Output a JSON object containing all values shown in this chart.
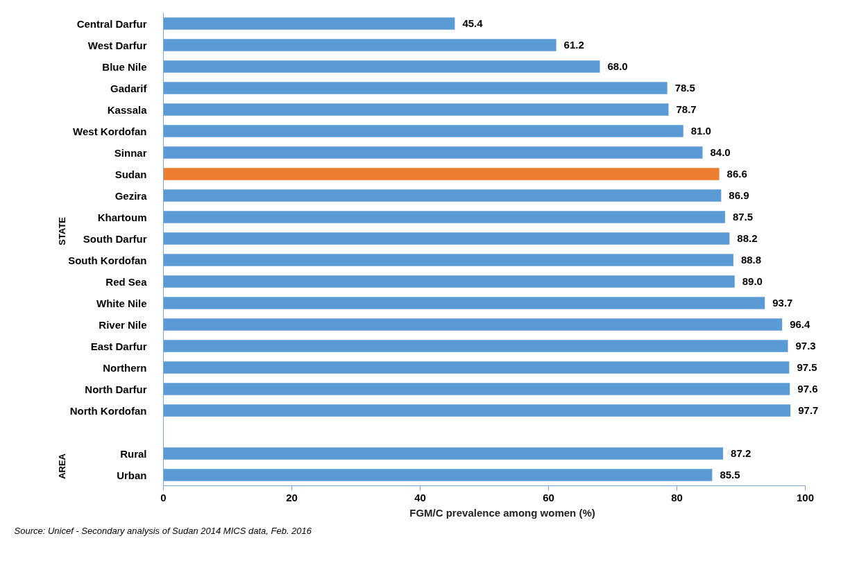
{
  "chart_data": {
    "type": "bar",
    "orientation": "horizontal",
    "categories": [
      "Central Darfur",
      "West Darfur",
      "Blue Nile",
      "Gadarif",
      "Kassala",
      "West Kordofan",
      "Sinnar",
      "Sudan",
      "Gezira",
      "Khartoum",
      "South Darfur",
      "South Kordofan",
      "Red Sea",
      "White Nile",
      "River Nile",
      "East Darfur",
      "Northern",
      "North Darfur",
      "North Kordofan",
      null,
      "Rural",
      "Urban"
    ],
    "values": [
      45.4,
      61.2,
      68.0,
      78.5,
      78.7,
      81.0,
      84.0,
      86.6,
      86.9,
      87.5,
      88.2,
      88.8,
      89.0,
      93.7,
      96.4,
      97.3,
      97.5,
      97.6,
      97.7,
      null,
      87.2,
      85.5
    ],
    "colors": [
      "#5b9bd5",
      "#5b9bd5",
      "#5b9bd5",
      "#5b9bd5",
      "#5b9bd5",
      "#5b9bd5",
      "#5b9bd5",
      "#ed7d31",
      "#5b9bd5",
      "#5b9bd5",
      "#5b9bd5",
      "#5b9bd5",
      "#5b9bd5",
      "#5b9bd5",
      "#5b9bd5",
      "#5b9bd5",
      "#5b9bd5",
      "#5b9bd5",
      "#5b9bd5",
      null,
      "#5b9bd5",
      "#5b9bd5"
    ],
    "value_labels": [
      "45.4",
      "61.2",
      "68.0",
      "78.5",
      "78.7",
      "81.0",
      "84.0",
      "86.6",
      "86.9",
      "87.5",
      "88.2",
      "88.8",
      "89.0",
      "93.7",
      "96.4",
      "97.3",
      "97.5",
      "97.6",
      "97.7",
      null,
      "87.2",
      "85.5"
    ],
    "xlabel": "FGM/C prevalence among women (%)",
    "xlim": [
      0,
      100
    ],
    "xticks": [
      0,
      20,
      40,
      60,
      80,
      100
    ],
    "annotations": [
      "STATE",
      "AREA",
      "Source: Unicef - Secondary analysis of Sudan 2014 MICS data, Feb. 2016"
    ]
  }
}
